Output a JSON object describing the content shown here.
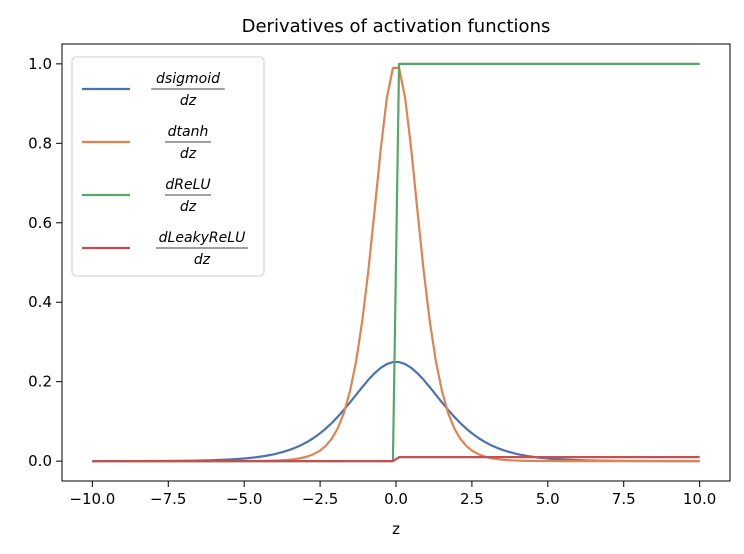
{
  "chart_data": {
    "type": "line",
    "title": "Derivatives of activation functions",
    "xlabel": "z",
    "ylabel": "",
    "xlim": [
      -11,
      11
    ],
    "ylim": [
      -0.05,
      1.05
    ],
    "xticks": [
      -10,
      -7.5,
      -5,
      -2.5,
      0,
      2.5,
      5,
      7.5,
      10
    ],
    "xtick_labels": [
      "−10.0",
      "−7.5",
      "−5.0",
      "−2.5",
      "0.0",
      "2.5",
      "5.0",
      "7.5",
      "10.0"
    ],
    "yticks": [
      0,
      0.2,
      0.4,
      0.6,
      0.8,
      1.0
    ],
    "ytick_labels": [
      "0.0",
      "0.2",
      "0.4",
      "0.6",
      "0.8",
      "1.0"
    ],
    "grid": false,
    "legend_position": "top-left",
    "series": [
      {
        "name_num": "dsigmoid",
        "name_den": "dz",
        "color": "#4c72b0",
        "function": "dsigmoid",
        "peak": 0.25
      },
      {
        "name_num": "dtanh",
        "name_den": "dz",
        "color": "#dd8452",
        "function": "dtanh",
        "peak": 1.0
      },
      {
        "name_num": "dReLU",
        "name_den": "dz",
        "color": "#55a868",
        "function": "drelu",
        "left_value": 0,
        "right_value": 1
      },
      {
        "name_num": "dLeakyReLU",
        "name_den": "dz",
        "color": "#c44e52",
        "function": "dleakyrelu",
        "left_value": 0,
        "right_value": 0.01
      }
    ],
    "x": [
      -10,
      -9.9,
      -9.8,
      -9.7,
      -9.6,
      -9.5,
      -9.4,
      -9.3,
      -9.2,
      -9.1,
      -9.0
    ]
  }
}
